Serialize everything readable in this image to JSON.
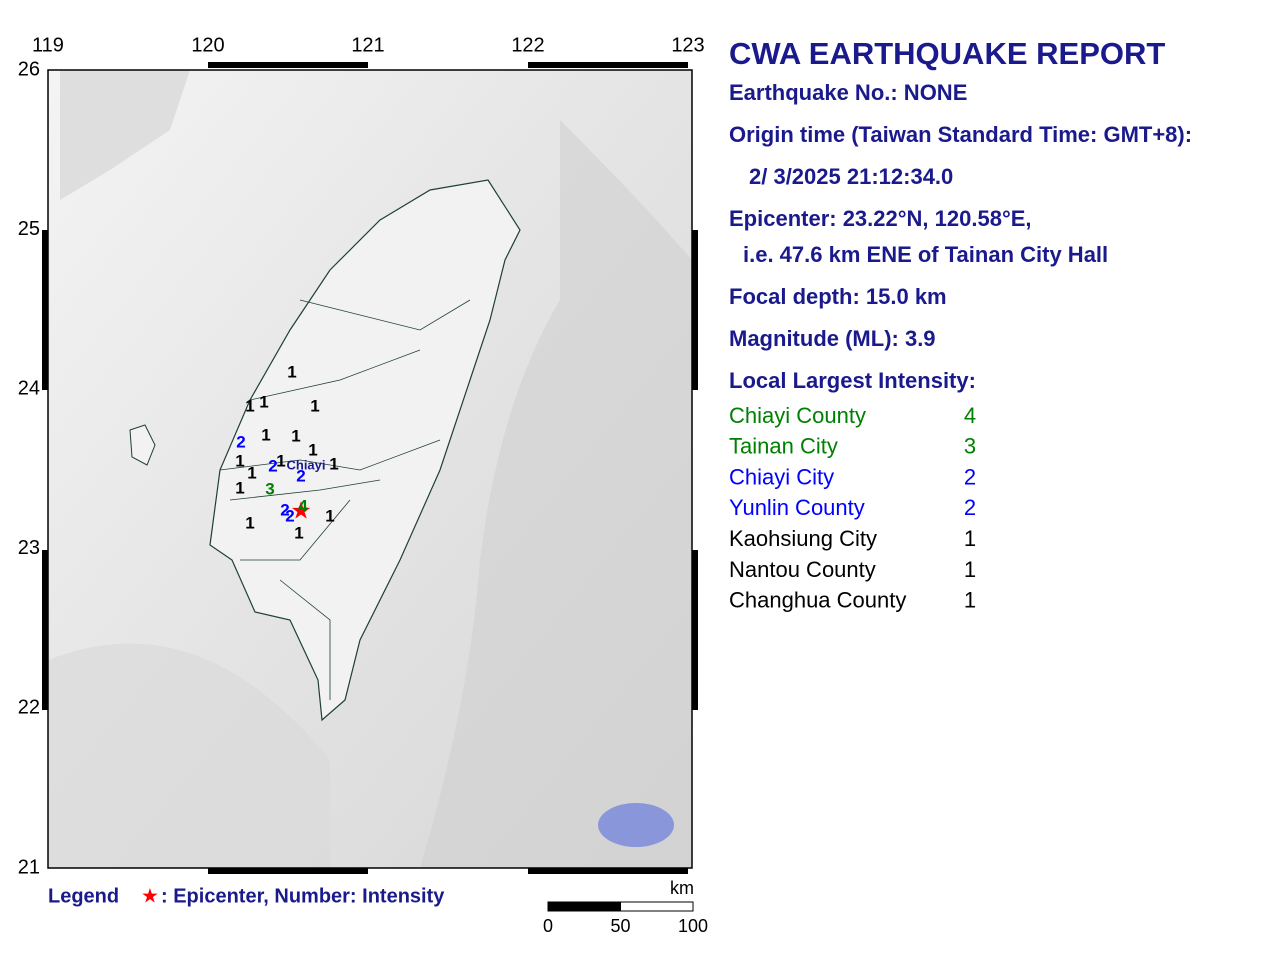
{
  "map": {
    "lon_ticks": [
      119,
      120,
      121,
      122,
      123
    ],
    "lat_ticks": [
      26,
      25,
      24,
      23,
      22,
      21
    ],
    "intensity_labels": [
      1,
      1,
      1,
      1,
      2,
      1,
      1,
      1,
      1,
      2,
      1,
      1,
      1,
      2,
      3,
      1,
      2,
      2,
      4,
      1,
      1,
      1
    ],
    "place_label": "Chiayi",
    "legend": {
      "title": "Legend",
      "symbol": "★",
      "text": ": Epicenter, Number: Intensity"
    },
    "scale": {
      "unit": "km",
      "ticks": [
        0,
        50,
        100
      ]
    }
  },
  "report": {
    "title": "CWA EARTHQUAKE REPORT",
    "lines": [
      "Earthquake No.: NONE",
      "Origin time (Taiwan Standard Time: GMT+8):",
      "2/ 3/2025 21:12:34.0",
      "Epicenter: 23.22°N, 120.58°E,",
      "i.e. 47.6 km ENE of Tainan City Hall",
      "Focal depth: 15.0 km",
      "Magnitude (ML): 3.9"
    ],
    "intensity_title": "Local Largest Intensity:",
    "intensities": [
      {
        "region": "Chiayi County",
        "intensity": 4,
        "color": "#008000"
      },
      {
        "region": "Tainan City",
        "intensity": 3,
        "color": "#008000"
      },
      {
        "region": "Chiayi City",
        "intensity": 2,
        "color": "#0000ff"
      },
      {
        "region": "Yunlin County",
        "intensity": 2,
        "color": "#0000ff"
      },
      {
        "region": "Kaohsiung City",
        "intensity": 1,
        "color": "#000000"
      },
      {
        "region": "Nantou County",
        "intensity": 1,
        "color": "#000000"
      },
      {
        "region": "Changhua County",
        "intensity": 1,
        "color": "#000000"
      }
    ]
  }
}
